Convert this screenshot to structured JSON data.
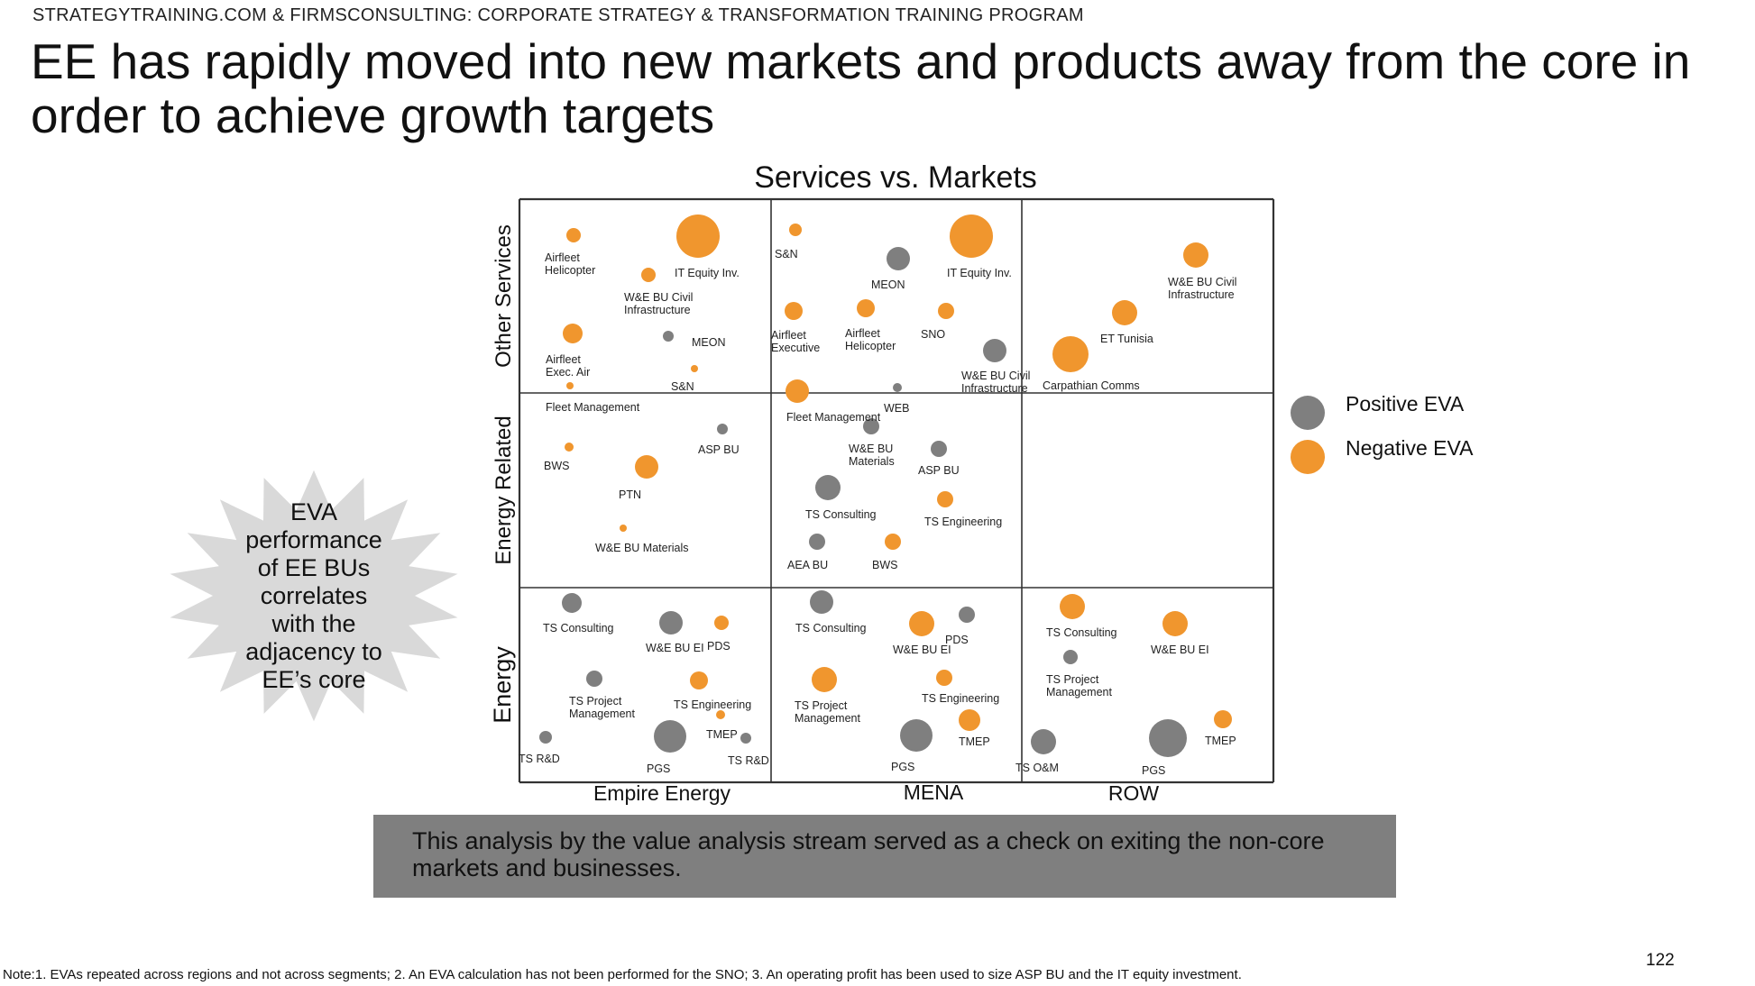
{
  "header": "STRATEGYTRAINING.COM & FIRMSCONSULTING: CORPORATE STRATEGY & TRANSFORMATION TRAINING PROGRAM",
  "title": "EE has rapidly moved into new markets and products away from the core in order to achieve growth targets",
  "callout": "This analysis by the value analysis stream served as a check on exiting the non-core markets and businesses.",
  "note": "Note:1. EVAs repeated across regions and not across segments;  2. An EVA calculation has not been performed for the SNO; 3. An operating profit has been used to size ASP BU and the IT equity investment.",
  "page_number": "122",
  "burst": {
    "lines": [
      "EVA",
      "performance",
      "of EE BUs",
      "correlates",
      "with the",
      "adjacency to",
      "EE’s core"
    ]
  },
  "colors": {
    "positive": "#7f7f7f",
    "negative": "#f0962e",
    "grid": "#333333",
    "burst": "#d9d9d9",
    "callout_bg": "#7f7f7f"
  },
  "chart_data": {
    "type": "scatter",
    "title": "Services vs. Markets",
    "x_categories": [
      "Empire Energy",
      "MENA",
      "ROW"
    ],
    "y_categories": [
      "Other Services",
      "Energy Related",
      "Energy"
    ],
    "legend": [
      {
        "key": "positive",
        "label": "Positive EVA"
      },
      {
        "key": "negative",
        "label": "Negative EVA"
      }
    ],
    "points": [
      {
        "label": "Airfleet\nHelicopter",
        "market": "Empire Energy",
        "segment": "Other Services",
        "eva": "negative"
      },
      {
        "label": "IT Equity Inv.",
        "market": "Empire Energy",
        "segment": "Other Services",
        "eva": "negative"
      },
      {
        "label": "W&E BU Civil\nInfrastructure",
        "market": "Empire Energy",
        "segment": "Other Services",
        "eva": "negative"
      },
      {
        "label": "Airfleet\nExec. Air",
        "market": "Empire Energy",
        "segment": "Other Services",
        "eva": "negative"
      },
      {
        "label": "MEON",
        "market": "Empire Energy",
        "segment": "Other Services",
        "eva": "positive"
      },
      {
        "label": "S&N",
        "market": "Empire Energy",
        "segment": "Other Services",
        "eva": "negative"
      },
      {
        "label": "Fleet Management",
        "market": "Empire Energy",
        "segment": "Other Services",
        "eva": "negative"
      },
      {
        "label": "S&N",
        "market": "MENA",
        "segment": "Other Services",
        "eva": "negative"
      },
      {
        "label": "MEON",
        "market": "MENA",
        "segment": "Other Services",
        "eva": "positive"
      },
      {
        "label": "IT Equity Inv.",
        "market": "MENA",
        "segment": "Other Services",
        "eva": "negative"
      },
      {
        "label": "Airfleet\nExecutive",
        "market": "MENA",
        "segment": "Other Services",
        "eva": "negative"
      },
      {
        "label": "Airfleet\nHelicopter",
        "market": "MENA",
        "segment": "Other Services",
        "eva": "negative"
      },
      {
        "label": "SNO",
        "market": "MENA",
        "segment": "Other Services",
        "eva": "negative"
      },
      {
        "label": "W&E BU Civil\nInfrastructure",
        "market": "MENA",
        "segment": "Other Services",
        "eva": "positive"
      },
      {
        "label": "WEB",
        "market": "MENA",
        "segment": "Other Services",
        "eva": "positive"
      },
      {
        "label": "Fleet Management",
        "market": "MENA",
        "segment": "Other Services",
        "eva": "negative"
      },
      {
        "label": "W&E BU Civil\nInfrastructure",
        "market": "ROW",
        "segment": "Other Services",
        "eva": "negative"
      },
      {
        "label": "ET Tunisia",
        "market": "ROW",
        "segment": "Other Services",
        "eva": "negative"
      },
      {
        "label": "Carpathian Comms",
        "market": "ROW",
        "segment": "Other Services",
        "eva": "negative"
      },
      {
        "label": "BWS",
        "market": "Empire Energy",
        "segment": "Energy Related",
        "eva": "negative"
      },
      {
        "label": "ASP BU",
        "market": "Empire Energy",
        "segment": "Energy Related",
        "eva": "positive"
      },
      {
        "label": "PTN",
        "market": "Empire Energy",
        "segment": "Energy Related",
        "eva": "negative"
      },
      {
        "label": "W&E BU Materials",
        "market": "Empire Energy",
        "segment": "Energy Related",
        "eva": "negative"
      },
      {
        "label": "W&E BU\nMaterials",
        "market": "MENA",
        "segment": "Energy Related",
        "eva": "positive"
      },
      {
        "label": "ASP BU",
        "market": "MENA",
        "segment": "Energy Related",
        "eva": "positive"
      },
      {
        "label": "TS Consulting",
        "market": "MENA",
        "segment": "Energy Related",
        "eva": "positive"
      },
      {
        "label": "TS Engineering",
        "market": "MENA",
        "segment": "Energy Related",
        "eva": "negative"
      },
      {
        "label": "AEA BU",
        "market": "MENA",
        "segment": "Energy Related",
        "eva": "positive"
      },
      {
        "label": "BWS",
        "market": "MENA",
        "segment": "Energy Related",
        "eva": "negative"
      },
      {
        "label": "TS Consulting",
        "market": "Empire Energy",
        "segment": "Energy",
        "eva": "positive"
      },
      {
        "label": "W&E BU EI",
        "market": "Empire Energy",
        "segment": "Energy",
        "eva": "positive"
      },
      {
        "label": "PDS",
        "market": "Empire Energy",
        "segment": "Energy",
        "eva": "negative"
      },
      {
        "label": "TS Project\nManagement",
        "market": "Empire Energy",
        "segment": "Energy",
        "eva": "positive"
      },
      {
        "label": "TS Engineering",
        "market": "Empire Energy",
        "segment": "Energy",
        "eva": "negative"
      },
      {
        "label": "TMEP",
        "market": "Empire Energy",
        "segment": "Energy",
        "eva": "negative"
      },
      {
        "label": "TS R&D",
        "market": "Empire Energy",
        "segment": "Energy",
        "eva": "positive"
      },
      {
        "label": "PGS",
        "market": "Empire Energy",
        "segment": "Energy",
        "eva": "positive"
      },
      {
        "label": "TS R&D",
        "market": "Empire Energy",
        "segment": "Energy",
        "eva": "positive"
      },
      {
        "label": "TS Consulting",
        "market": "MENA",
        "segment": "Energy",
        "eva": "positive"
      },
      {
        "label": "W&E BU EI",
        "market": "MENA",
        "segment": "Energy",
        "eva": "negative"
      },
      {
        "label": "PDS",
        "market": "MENA",
        "segment": "Energy",
        "eva": "positive"
      },
      {
        "label": "TS Project\nManagement",
        "market": "MENA",
        "segment": "Energy",
        "eva": "negative"
      },
      {
        "label": "TS Engineering",
        "market": "MENA",
        "segment": "Energy",
        "eva": "negative"
      },
      {
        "label": "TMEP",
        "market": "MENA",
        "segment": "Energy",
        "eva": "negative"
      },
      {
        "label": "PGS",
        "market": "MENA",
        "segment": "Energy",
        "eva": "positive"
      },
      {
        "label": "TS Consulting",
        "market": "ROW",
        "segment": "Energy",
        "eva": "negative"
      },
      {
        "label": "W&E BU EI",
        "market": "ROW",
        "segment": "Energy",
        "eva": "negative"
      },
      {
        "label": "TS Project\nManagement",
        "market": "ROW",
        "segment": "Energy",
        "eva": "positive"
      },
      {
        "label": "TS O&M",
        "market": "ROW",
        "segment": "Energy",
        "eva": "positive"
      },
      {
        "label": "PGS",
        "market": "ROW",
        "segment": "Energy",
        "eva": "positive"
      },
      {
        "label": "TMEP",
        "market": "ROW",
        "segment": "Energy",
        "eva": "negative"
      }
    ]
  }
}
